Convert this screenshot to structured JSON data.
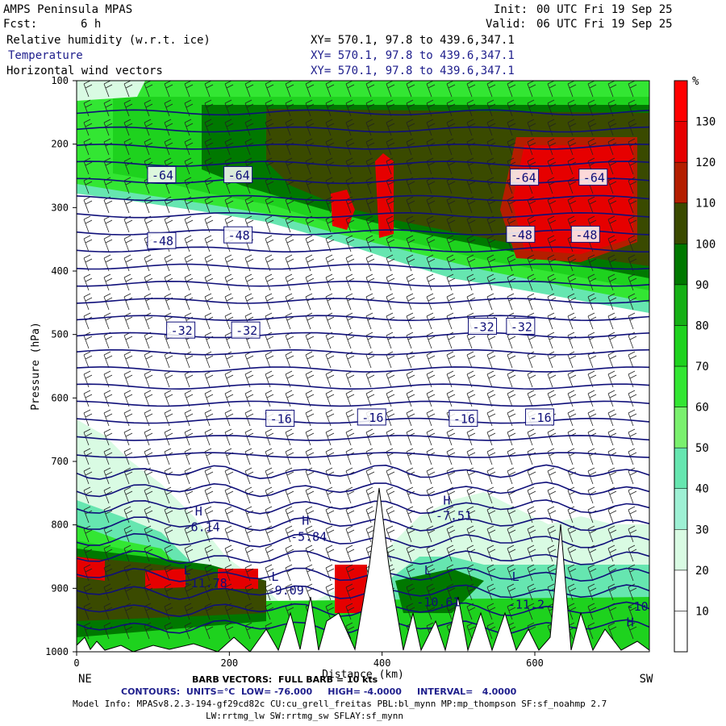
{
  "header": {
    "model_title": "AMPS Peninsula MPAS",
    "forecast_label": "Fcst:",
    "forecast_value": "6 h",
    "init_label": "Init:",
    "init_value": "00 UTC Fri 19 Sep 25",
    "valid_label": "Valid:",
    "valid_value": "06 UTC Fri 19 Sep 25",
    "fields": [
      {
        "name": "Relative humidity (w.r.t. ice)",
        "xy": "XY= 570.1, 97.8 to 439.6,347.1"
      },
      {
        "name": "Temperature",
        "xy": "XY= 570.1, 97.8 to 439.6,347.1"
      },
      {
        "name": "Horizontal wind vectors",
        "xy": "XY= 570.1, 97.8 to 439.6,347.1"
      }
    ]
  },
  "footer": {
    "barb_line": "BARB VECTORS:  FULL BARB = 10 kts",
    "contours_line": "CONTOURS:  UNITS=°C  LOW= -76.000     HIGH= -4.0000     INTERVAL=   4.0000",
    "model_info_1": "Model Info: MPASv8.2.3-194-gf29cd82c CU:cu_grell_freitas PBL:bl_mynn MP:mp_thompson SF:sf_noahmp 2.7",
    "model_info_2": "LW:rrtmg_lw SW:rrtmg_sw SFLAY:sf_mynn"
  },
  "chart_data": {
    "type": "heatmap",
    "xlabel": "Distance (km)",
    "ylabel": "Pressure (hPa)",
    "x_range": [
      0,
      750
    ],
    "y_range": [
      1000,
      100
    ],
    "x_ticks": [
      0,
      200,
      400,
      600
    ],
    "y_ticks": [
      100,
      200,
      300,
      400,
      500,
      600,
      700,
      800,
      900,
      1000
    ],
    "x_end_labels": {
      "left": "NE",
      "right": "SW"
    },
    "colorbar": {
      "unit": "%",
      "levels": [
        10,
        20,
        30,
        40,
        50,
        60,
        70,
        80,
        90,
        100,
        110,
        120,
        130
      ],
      "colors": [
        "#ffffff",
        "#ffffff",
        "#d9fbe3",
        "#9ef0d4",
        "#66e6b0",
        "#7af06e",
        "#33e633",
        "#1ed21e",
        "#15b015",
        "#007800",
        "#3a4a00",
        "#b41e00",
        "#e60000",
        "#ff0000"
      ]
    },
    "temperature_labels": [
      {
        "text": "-64",
        "x": 95,
        "p": 248
      },
      {
        "text": "-64",
        "x": 195,
        "p": 248
      },
      {
        "text": "-64",
        "x": 570,
        "p": 252
      },
      {
        "text": "-64",
        "x": 660,
        "p": 252
      },
      {
        "text": "-48",
        "x": 95,
        "p": 352
      },
      {
        "text": "-48",
        "x": 195,
        "p": 343
      },
      {
        "text": "-48",
        "x": 565,
        "p": 342
      },
      {
        "text": "-48",
        "x": 650,
        "p": 342
      },
      {
        "text": "-32",
        "x": 120,
        "p": 493
      },
      {
        "text": "-32",
        "x": 205,
        "p": 493
      },
      {
        "text": "-32",
        "x": 515,
        "p": 487
      },
      {
        "text": "-32",
        "x": 565,
        "p": 487
      },
      {
        "text": "-16",
        "x": 250,
        "p": 632
      },
      {
        "text": "-16",
        "x": 370,
        "p": 630
      },
      {
        "text": "-16",
        "x": 490,
        "p": 632
      },
      {
        "text": "-16",
        "x": 590,
        "p": 630
      }
    ],
    "extrema_labels": [
      {
        "text": "H",
        "x": 155,
        "p": 785
      },
      {
        "text": "-6.14",
        "x": 140,
        "p": 810
      },
      {
        "text": "H",
        "x": 295,
        "p": 800
      },
      {
        "text": "-5.84",
        "x": 280,
        "p": 825
      },
      {
        "text": "H",
        "x": 480,
        "p": 768
      },
      {
        "text": "-7.51",
        "x": 470,
        "p": 792
      },
      {
        "text": "L",
        "x": 140,
        "p": 878
      },
      {
        "text": "-11.78",
        "x": 140,
        "p": 898
      },
      {
        "text": "L",
        "x": 255,
        "p": 888
      },
      {
        "text": "-9.09",
        "x": 250,
        "p": 910
      },
      {
        "text": "L",
        "x": 455,
        "p": 878
      },
      {
        "text": "-10.61",
        "x": 445,
        "p": 928
      },
      {
        "text": "L",
        "x": 570,
        "p": 888
      },
      {
        "text": "-11.2",
        "x": 565,
        "p": 932
      },
      {
        "text": "-10",
        "x": 720,
        "p": 935
      },
      {
        "text": "H",
        "x": 720,
        "p": 960
      }
    ]
  }
}
